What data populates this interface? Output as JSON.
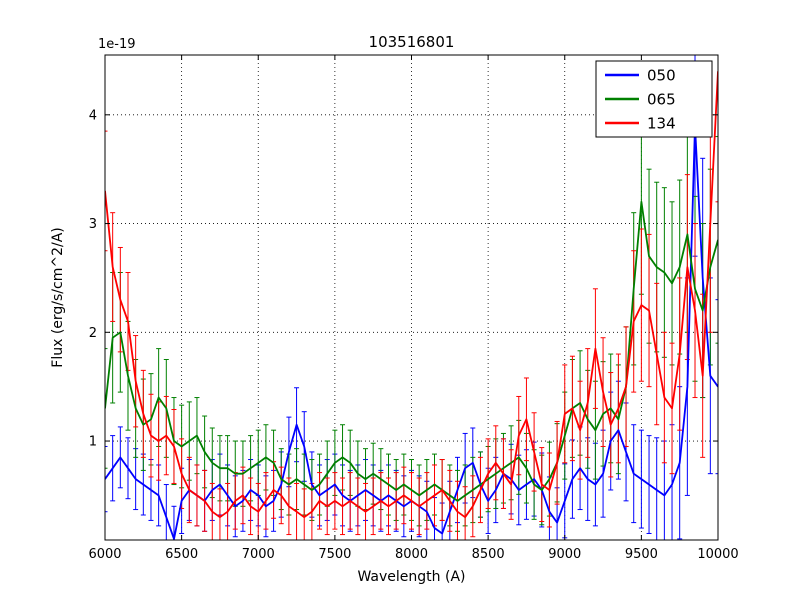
{
  "title": "103516801",
  "offset_text": "1e-19",
  "axes": {
    "xlabel": "Wavelength (A)",
    "ylabel": "Flux (erg/s/cm^2/A)"
  },
  "legend": {
    "entries": [
      {
        "label": "050",
        "color": "#0000ff"
      },
      {
        "label": "065",
        "color": "#008000"
      },
      {
        "label": "134",
        "color": "#ff0000"
      }
    ]
  },
  "chart_data": {
    "type": "line",
    "title": "103516801",
    "xlabel": "Wavelength (A)",
    "ylabel": "Flux (erg/s/cm^2/A)",
    "y_scale_offset": "1e-19",
    "xlim": [
      6000,
      10000
    ],
    "ylim": [
      0.09,
      4.55
    ],
    "xticks": [
      6000,
      6500,
      7000,
      7500,
      8000,
      8500,
      9000,
      9500,
      10000
    ],
    "yticks": [
      1,
      2,
      3,
      4
    ],
    "grid": true,
    "legend_position": "upper right",
    "x": [
      6000,
      6050,
      6100,
      6150,
      6200,
      6250,
      6300,
      6350,
      6400,
      6450,
      6500,
      6550,
      6600,
      6650,
      6700,
      6750,
      6800,
      6850,
      6900,
      6950,
      7000,
      7050,
      7100,
      7150,
      7200,
      7250,
      7300,
      7350,
      7400,
      7450,
      7500,
      7550,
      7600,
      7650,
      7700,
      7750,
      7800,
      7850,
      7900,
      7950,
      8000,
      8050,
      8100,
      8150,
      8200,
      8250,
      8300,
      8350,
      8400,
      8450,
      8500,
      8550,
      8600,
      8650,
      8700,
      8750,
      8800,
      8850,
      8900,
      8950,
      9000,
      9050,
      9100,
      9150,
      9200,
      9250,
      9300,
      9350,
      9400,
      9450,
      9500,
      9550,
      9600,
      9650,
      9700,
      9750,
      9800,
      9850,
      9900,
      9950,
      10000
    ],
    "series": [
      {
        "name": "050",
        "color": "#0000ff",
        "values": [
          0.65,
          0.75,
          0.85,
          0.75,
          0.65,
          0.6,
          0.55,
          0.5,
          0.3,
          0.1,
          0.45,
          0.55,
          0.5,
          0.45,
          0.55,
          0.6,
          0.5,
          0.4,
          0.45,
          0.55,
          0.5,
          0.4,
          0.45,
          0.6,
          0.9,
          1.15,
          0.95,
          0.6,
          0.5,
          0.55,
          0.6,
          0.5,
          0.45,
          0.5,
          0.55,
          0.5,
          0.45,
          0.5,
          0.45,
          0.4,
          0.45,
          0.4,
          0.35,
          0.2,
          0.15,
          0.35,
          0.55,
          0.75,
          0.8,
          0.6,
          0.45,
          0.55,
          0.7,
          0.65,
          0.55,
          0.6,
          0.65,
          0.55,
          0.35,
          0.25,
          0.45,
          0.65,
          0.75,
          0.65,
          0.6,
          0.7,
          1.0,
          1.1,
          0.9,
          0.7,
          0.65,
          0.6,
          0.55,
          0.5,
          0.6,
          0.8,
          1.5,
          3.9,
          2.5,
          1.6,
          1.5
        ],
        "errors": [
          0.3,
          0.3,
          0.28,
          0.28,
          0.28,
          0.28,
          0.28,
          0.28,
          0.3,
          0.3,
          0.3,
          0.28,
          0.28,
          0.28,
          0.28,
          0.28,
          0.28,
          0.28,
          0.28,
          0.28,
          0.28,
          0.28,
          0.28,
          0.3,
          0.32,
          0.34,
          0.32,
          0.3,
          0.28,
          0.28,
          0.28,
          0.28,
          0.28,
          0.28,
          0.28,
          0.28,
          0.28,
          0.28,
          0.28,
          0.28,
          0.28,
          0.28,
          0.28,
          0.28,
          0.28,
          0.28,
          0.3,
          0.32,
          0.32,
          0.3,
          0.3,
          0.3,
          0.32,
          0.32,
          0.32,
          0.32,
          0.34,
          0.34,
          0.32,
          0.32,
          0.34,
          0.36,
          0.38,
          0.38,
          0.38,
          0.4,
          0.45,
          0.45,
          0.45,
          0.45,
          0.45,
          0.45,
          0.48,
          0.5,
          0.55,
          0.7,
          1.0,
          1.2,
          1.1,
          0.9,
          0.8
        ]
      },
      {
        "name": "065",
        "color": "#008000",
        "values": [
          1.3,
          1.95,
          2.0,
          1.6,
          1.3,
          1.15,
          1.2,
          1.4,
          1.3,
          1.0,
          0.95,
          1.0,
          1.05,
          0.9,
          0.8,
          0.75,
          0.75,
          0.7,
          0.7,
          0.75,
          0.8,
          0.85,
          0.8,
          0.65,
          0.6,
          0.65,
          0.6,
          0.55,
          0.6,
          0.7,
          0.8,
          0.85,
          0.8,
          0.7,
          0.65,
          0.7,
          0.65,
          0.6,
          0.55,
          0.6,
          0.55,
          0.5,
          0.55,
          0.6,
          0.55,
          0.5,
          0.45,
          0.5,
          0.55,
          0.6,
          0.65,
          0.7,
          0.75,
          0.8,
          0.85,
          0.75,
          0.6,
          0.55,
          0.65,
          0.8,
          1.05,
          1.3,
          1.35,
          1.2,
          1.1,
          1.25,
          1.3,
          1.2,
          1.5,
          2.4,
          3.2,
          2.7,
          2.6,
          2.55,
          2.45,
          2.6,
          2.9,
          2.4,
          2.2,
          2.6,
          2.85
        ],
        "errors": [
          0.55,
          0.6,
          0.55,
          0.5,
          0.45,
          0.42,
          0.42,
          0.45,
          0.45,
          0.4,
          0.38,
          0.36,
          0.35,
          0.33,
          0.32,
          0.3,
          0.3,
          0.3,
          0.3,
          0.3,
          0.3,
          0.3,
          0.3,
          0.28,
          0.28,
          0.28,
          0.28,
          0.28,
          0.28,
          0.3,
          0.3,
          0.3,
          0.3,
          0.3,
          0.28,
          0.28,
          0.28,
          0.28,
          0.28,
          0.28,
          0.28,
          0.28,
          0.28,
          0.28,
          0.28,
          0.28,
          0.28,
          0.28,
          0.3,
          0.3,
          0.3,
          0.32,
          0.32,
          0.34,
          0.34,
          0.32,
          0.32,
          0.32,
          0.34,
          0.36,
          0.4,
          0.45,
          0.48,
          0.45,
          0.45,
          0.48,
          0.5,
          0.5,
          0.55,
          0.7,
          0.85,
          0.8,
          0.78,
          0.78,
          0.75,
          0.8,
          0.9,
          0.85,
          0.8,
          0.9,
          0.95
        ]
      },
      {
        "name": "134",
        "color": "#ff0000",
        "values": [
          3.3,
          2.6,
          2.3,
          2.1,
          1.55,
          1.25,
          1.05,
          1.0,
          1.05,
          0.95,
          0.7,
          0.55,
          0.5,
          0.45,
          0.35,
          0.3,
          0.35,
          0.45,
          0.5,
          0.4,
          0.35,
          0.45,
          0.55,
          0.5,
          0.4,
          0.35,
          0.3,
          0.35,
          0.45,
          0.4,
          0.45,
          0.4,
          0.45,
          0.4,
          0.35,
          0.4,
          0.45,
          0.4,
          0.45,
          0.5,
          0.45,
          0.4,
          0.45,
          0.5,
          0.55,
          0.45,
          0.35,
          0.3,
          0.4,
          0.55,
          0.7,
          0.8,
          0.7,
          0.6,
          1.05,
          1.2,
          0.9,
          0.6,
          0.55,
          0.8,
          1.25,
          1.3,
          1.1,
          1.35,
          1.85,
          1.45,
          1.15,
          1.3,
          1.5,
          2.1,
          2.25,
          2.2,
          1.8,
          1.4,
          1.3,
          1.8,
          2.6,
          2.2,
          1.6,
          3.0,
          4.4
        ],
        "errors": [
          0.55,
          0.5,
          0.48,
          0.45,
          0.42,
          0.4,
          0.38,
          0.36,
          0.36,
          0.34,
          0.32,
          0.3,
          0.28,
          0.28,
          0.26,
          0.26,
          0.26,
          0.26,
          0.26,
          0.26,
          0.26,
          0.26,
          0.26,
          0.26,
          0.26,
          0.26,
          0.26,
          0.26,
          0.26,
          0.26,
          0.26,
          0.26,
          0.26,
          0.26,
          0.26,
          0.26,
          0.26,
          0.26,
          0.26,
          0.26,
          0.26,
          0.26,
          0.26,
          0.28,
          0.28,
          0.28,
          0.28,
          0.28,
          0.28,
          0.3,
          0.32,
          0.34,
          0.32,
          0.32,
          0.36,
          0.38,
          0.36,
          0.34,
          0.34,
          0.38,
          0.45,
          0.48,
          0.45,
          0.5,
          0.55,
          0.5,
          0.48,
          0.5,
          0.55,
          0.65,
          0.7,
          0.7,
          0.65,
          0.6,
          0.6,
          0.7,
          0.85,
          0.8,
          0.75,
          1.0,
          1.2
        ]
      }
    ]
  }
}
